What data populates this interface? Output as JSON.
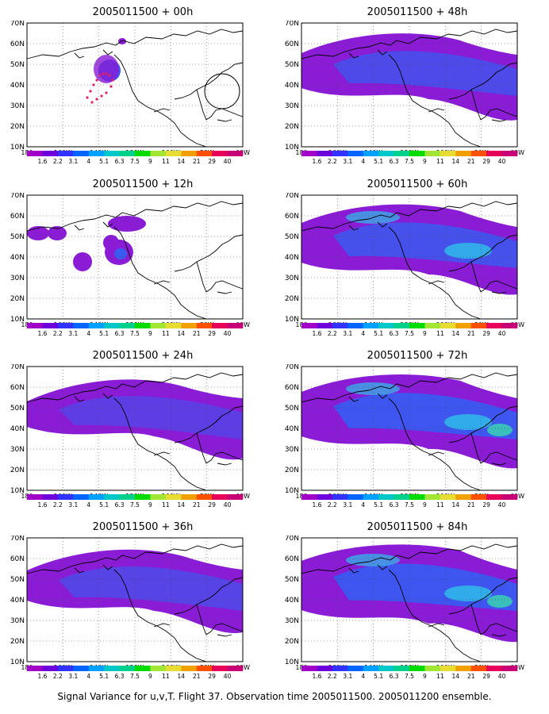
{
  "panels": [
    {
      "title": "2005011500 + 00h",
      "lead": "00h",
      "level": 0
    },
    {
      "title": "2005011500 + 48h",
      "lead": "48h",
      "level": 4
    },
    {
      "title": "2005011500 + 12h",
      "lead": "12h",
      "level": 1
    },
    {
      "title": "2005011500 + 60h",
      "lead": "60h",
      "level": 5
    },
    {
      "title": "2005011500 + 24h",
      "lead": "24h",
      "level": 2
    },
    {
      "title": "2005011500 + 72h",
      "lead": "72h",
      "level": 6
    },
    {
      "title": "2005011500 + 36h",
      "lead": "36h",
      "level": 3
    },
    {
      "title": "2005011500 + 84h",
      "lead": "84h",
      "level": 7
    }
  ],
  "lat_labels": [
    "70N",
    "60N",
    "50N",
    "40N",
    "30N",
    "20N",
    "10N"
  ],
  "lon_labels": [
    "180",
    "160W",
    "140W",
    "120W",
    "100W",
    "80W",
    "60W"
  ],
  "colorbar": {
    "labels": [
      "1.6",
      "2.2",
      "3.1",
      "4",
      "5.1",
      "6.3",
      "7.5",
      "9",
      "11",
      "14",
      "21",
      "29",
      "40"
    ],
    "colors": [
      "#a000c8",
      "#6e00dc",
      "#3232ff",
      "#0064ff",
      "#00a0ff",
      "#00c8c8",
      "#00d28c",
      "#00dc00",
      "#a0e632",
      "#e6dc32",
      "#f0a000",
      "#fa5000",
      "#e6005a",
      "#c80078"
    ]
  },
  "footer": "Signal Variance for u,v,T. Flight 37. Observation time 2005011500. 2005011200 ensemble.",
  "colors": {
    "low": "#8a1cd6",
    "mid": "#3a5af0",
    "high": "#2ec0e8",
    "peak": "#3ad9b0",
    "track": "#e0206a"
  }
}
